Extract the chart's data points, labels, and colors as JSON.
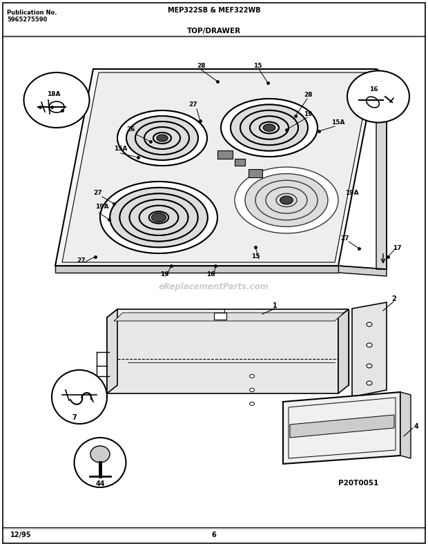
{
  "pub_no_label": "Publication No.",
  "pub_no_value": "5965275590",
  "model_label": "MEP322SB & MEF322WB",
  "section_label": "TOP/DRAWER",
  "date_label": "12/95",
  "page_label": "6",
  "part_code": "P20T0051",
  "watermark": "eReplacementParts.com",
  "bg_color": "#ffffff",
  "fig_width": 6.2,
  "fig_height": 7.91
}
